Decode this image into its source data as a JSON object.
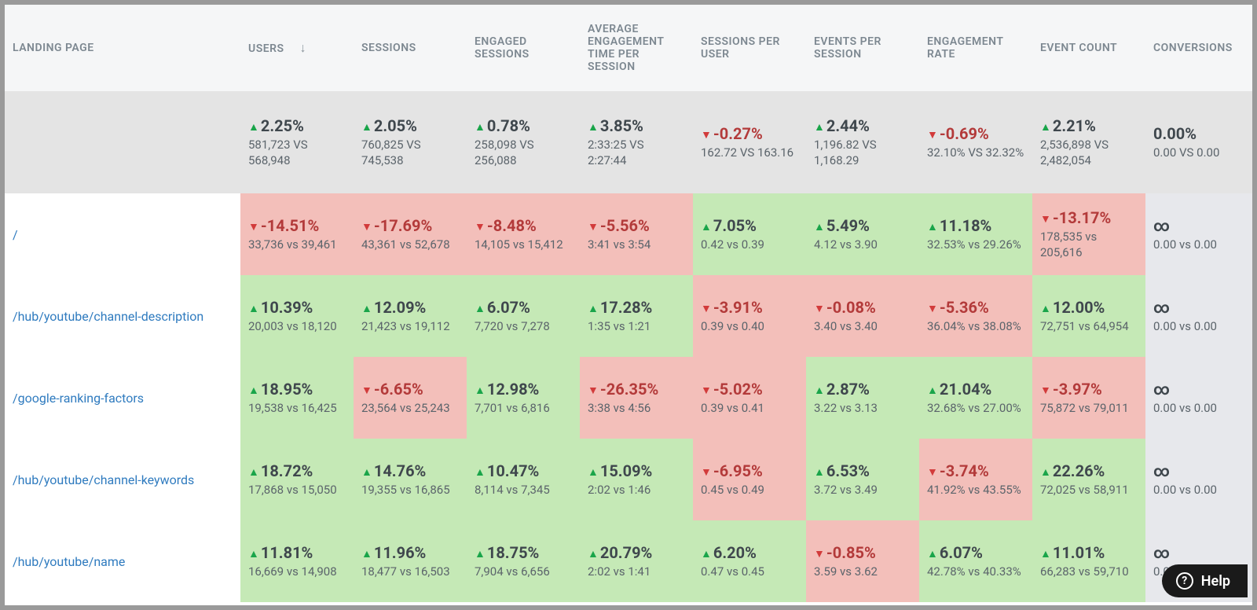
{
  "colors": {
    "up_triangle": "#1aa54a",
    "down_triangle": "#d23b3b",
    "up_bg": "#c5e9b6",
    "down_bg": "#f3bfba",
    "neutral_bg": "#e7e8ec",
    "header_bg": "#f5f6f7",
    "summary_bg": "#e4e4e4",
    "link_color": "#2f7bbf",
    "text_color": "#50575d"
  },
  "help_label": "Help",
  "columns": [
    {
      "key": "landing_page",
      "label": "LANDING PAGE"
    },
    {
      "key": "users",
      "label": "USERS",
      "sorted": true
    },
    {
      "key": "sessions",
      "label": "SESSIONS"
    },
    {
      "key": "engaged_sessions",
      "label": "ENGAGED SESSIONS"
    },
    {
      "key": "avg_eng_time",
      "label": "AVERAGE ENGAGEMENT TIME PER SESSION"
    },
    {
      "key": "sessions_per_user",
      "label": "SESSIONS PER USER"
    },
    {
      "key": "events_per_session",
      "label": "EVENTS PER SESSION"
    },
    {
      "key": "engagement_rate",
      "label": "ENGAGEMENT RATE"
    },
    {
      "key": "event_count",
      "label": "EVENT COUNT"
    },
    {
      "key": "conversions",
      "label": "CONVERSIONS"
    }
  ],
  "summary": {
    "users": {
      "dir": "up",
      "pct": "2.25%",
      "cmp": "581,723 VS 568,948"
    },
    "sessions": {
      "dir": "up",
      "pct": "2.05%",
      "cmp": "760,825 VS 745,538"
    },
    "engaged_sessions": {
      "dir": "up",
      "pct": "0.78%",
      "cmp": "258,098 VS 256,088"
    },
    "avg_eng_time": {
      "dir": "up",
      "pct": "3.85%",
      "cmp": "2:33:25 VS 2:27:44"
    },
    "sessions_per_user": {
      "dir": "down",
      "pct": "-0.27%",
      "cmp": "162.72 VS 163.16"
    },
    "events_per_session": {
      "dir": "up",
      "pct": "2.44%",
      "cmp": "1,196.82 VS 1,168.29"
    },
    "engagement_rate": {
      "dir": "down",
      "pct": "-0.69%",
      "cmp": "32.10% VS 32.32%"
    },
    "event_count": {
      "dir": "up",
      "pct": "2.21%",
      "cmp": "2,536,898 VS 2,482,054"
    },
    "conversions": {
      "dir": "none",
      "pct": "0.00%",
      "cmp": "0.00 VS 0.00"
    }
  },
  "rows": [
    {
      "page": "/",
      "cells": {
        "users": {
          "dir": "down",
          "pct": "-14.51%",
          "cmp": "33,736 vs 39,461",
          "bg": "down"
        },
        "sessions": {
          "dir": "down",
          "pct": "-17.69%",
          "cmp": "43,361 vs 52,678",
          "bg": "down"
        },
        "engaged_sessions": {
          "dir": "down",
          "pct": "-8.48%",
          "cmp": "14,105 vs 15,412",
          "bg": "down"
        },
        "avg_eng_time": {
          "dir": "down",
          "pct": "-5.56%",
          "cmp": "3:41 vs 3:54",
          "bg": "down"
        },
        "sessions_per_user": {
          "dir": "up",
          "pct": "7.05%",
          "cmp": "0.42 vs 0.39",
          "bg": "up"
        },
        "events_per_session": {
          "dir": "up",
          "pct": "5.49%",
          "cmp": "4.12 vs 3.90",
          "bg": "up"
        },
        "engagement_rate": {
          "dir": "up",
          "pct": "11.18%",
          "cmp": "32.53% vs 29.26%",
          "bg": "up"
        },
        "event_count": {
          "dir": "down",
          "pct": "-13.17%",
          "cmp": "178,535 vs 205,616",
          "bg": "down"
        },
        "conversions": {
          "dir": "none",
          "pct": "∞",
          "cmp": "0.00 vs 0.00",
          "bg": "neutral"
        }
      }
    },
    {
      "page": "/hub/youtube/channel-description",
      "cells": {
        "users": {
          "dir": "up",
          "pct": "10.39%",
          "cmp": "20,003 vs 18,120",
          "bg": "up"
        },
        "sessions": {
          "dir": "up",
          "pct": "12.09%",
          "cmp": "21,423 vs 19,112",
          "bg": "up"
        },
        "engaged_sessions": {
          "dir": "up",
          "pct": "6.07%",
          "cmp": "7,720 vs 7,278",
          "bg": "up"
        },
        "avg_eng_time": {
          "dir": "up",
          "pct": "17.28%",
          "cmp": "1:35 vs 1:21",
          "bg": "up"
        },
        "sessions_per_user": {
          "dir": "down",
          "pct": "-3.91%",
          "cmp": "0.39 vs 0.40",
          "bg": "down"
        },
        "events_per_session": {
          "dir": "down",
          "pct": "-0.08%",
          "cmp": "3.40 vs 3.40",
          "bg": "down"
        },
        "engagement_rate": {
          "dir": "down",
          "pct": "-5.36%",
          "cmp": "36.04% vs 38.08%",
          "bg": "down"
        },
        "event_count": {
          "dir": "up",
          "pct": "12.00%",
          "cmp": "72,751 vs 64,954",
          "bg": "up"
        },
        "conversions": {
          "dir": "none",
          "pct": "∞",
          "cmp": "0.00 vs 0.00",
          "bg": "neutral"
        }
      }
    },
    {
      "page": "/google-ranking-factors",
      "cells": {
        "users": {
          "dir": "up",
          "pct": "18.95%",
          "cmp": "19,538 vs 16,425",
          "bg": "up"
        },
        "sessions": {
          "dir": "down",
          "pct": "-6.65%",
          "cmp": "23,564 vs 25,243",
          "bg": "down"
        },
        "engaged_sessions": {
          "dir": "up",
          "pct": "12.98%",
          "cmp": "7,701 vs 6,816",
          "bg": "up"
        },
        "avg_eng_time": {
          "dir": "down",
          "pct": "-26.35%",
          "cmp": "3:38 vs 4:56",
          "bg": "down"
        },
        "sessions_per_user": {
          "dir": "down",
          "pct": "-5.02%",
          "cmp": "0.39 vs 0.41",
          "bg": "down"
        },
        "events_per_session": {
          "dir": "up",
          "pct": "2.87%",
          "cmp": "3.22 vs 3.13",
          "bg": "up"
        },
        "engagement_rate": {
          "dir": "up",
          "pct": "21.04%",
          "cmp": "32.68% vs 27.00%",
          "bg": "up"
        },
        "event_count": {
          "dir": "down",
          "pct": "-3.97%",
          "cmp": "75,872 vs 79,011",
          "bg": "down"
        },
        "conversions": {
          "dir": "none",
          "pct": "∞",
          "cmp": "0.00 vs 0.00",
          "bg": "neutral"
        }
      }
    },
    {
      "page": "/hub/youtube/channel-keywords",
      "cells": {
        "users": {
          "dir": "up",
          "pct": "18.72%",
          "cmp": "17,868 vs 15,050",
          "bg": "up"
        },
        "sessions": {
          "dir": "up",
          "pct": "14.76%",
          "cmp": "19,355 vs 16,865",
          "bg": "up"
        },
        "engaged_sessions": {
          "dir": "up",
          "pct": "10.47%",
          "cmp": "8,114 vs 7,345",
          "bg": "up"
        },
        "avg_eng_time": {
          "dir": "up",
          "pct": "15.09%",
          "cmp": "2:02 vs 1:46",
          "bg": "up"
        },
        "sessions_per_user": {
          "dir": "down",
          "pct": "-6.95%",
          "cmp": "0.45 vs 0.49",
          "bg": "down"
        },
        "events_per_session": {
          "dir": "up",
          "pct": "6.53%",
          "cmp": "3.72 vs 3.49",
          "bg": "up"
        },
        "engagement_rate": {
          "dir": "down",
          "pct": "-3.74%",
          "cmp": "41.92% vs 43.55%",
          "bg": "down"
        },
        "event_count": {
          "dir": "up",
          "pct": "22.26%",
          "cmp": "72,025 vs 58,911",
          "bg": "up"
        },
        "conversions": {
          "dir": "none",
          "pct": "∞",
          "cmp": "0.00 vs 0.00",
          "bg": "neutral"
        }
      }
    },
    {
      "page": "/hub/youtube/name",
      "cells": {
        "users": {
          "dir": "up",
          "pct": "11.81%",
          "cmp": "16,669 vs 14,908",
          "bg": "up"
        },
        "sessions": {
          "dir": "up",
          "pct": "11.96%",
          "cmp": "18,477 vs 16,503",
          "bg": "up"
        },
        "engaged_sessions": {
          "dir": "up",
          "pct": "18.75%",
          "cmp": "7,904 vs 6,656",
          "bg": "up"
        },
        "avg_eng_time": {
          "dir": "up",
          "pct": "20.79%",
          "cmp": "2:02 vs 1:41",
          "bg": "up"
        },
        "sessions_per_user": {
          "dir": "up",
          "pct": "6.20%",
          "cmp": "0.47 vs 0.45",
          "bg": "up"
        },
        "events_per_session": {
          "dir": "down",
          "pct": "-0.85%",
          "cmp": "3.59 vs 3.62",
          "bg": "down"
        },
        "engagement_rate": {
          "dir": "up",
          "pct": "6.07%",
          "cmp": "42.78% vs 40.33%",
          "bg": "up"
        },
        "event_count": {
          "dir": "up",
          "pct": "11.01%",
          "cmp": "66,283 vs 59,710",
          "bg": "up"
        },
        "conversions": {
          "dir": "none",
          "pct": "∞",
          "cmp": "0.00 vs 0.00",
          "bg": "neutral"
        }
      }
    }
  ]
}
